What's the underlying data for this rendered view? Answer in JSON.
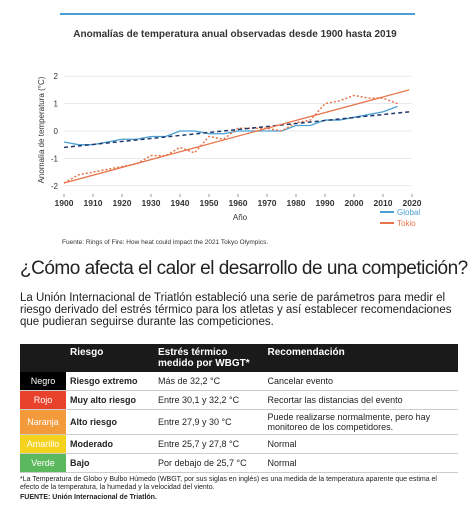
{
  "chart_data": {
    "type": "line",
    "title": "Anomalías de temperatura anual observadas desde 1900 hasta 2019",
    "y_label": "Anomalía de temperatura (°C)",
    "x_label": "Año",
    "source": "Fuente: Rings of Fire: How heat could impact the 2021 Tokyo Olympics.",
    "x": [
      1900,
      1905,
      1910,
      1915,
      1920,
      1925,
      1930,
      1935,
      1940,
      1945,
      1950,
      1955,
      1960,
      1965,
      1970,
      1975,
      1980,
      1985,
      1990,
      1995,
      2000,
      2005,
      2010,
      2015
    ],
    "series": [
      {
        "name": "Global",
        "color": "#4a9fd4",
        "style": "solid",
        "values": [
          -0.4,
          -0.5,
          -0.5,
          -0.4,
          -0.3,
          -0.3,
          -0.2,
          -0.2,
          0.0,
          0.0,
          -0.1,
          -0.1,
          0.0,
          0.0,
          0.0,
          0.0,
          0.2,
          0.2,
          0.4,
          0.4,
          0.5,
          0.6,
          0.7,
          0.9
        ]
      },
      {
        "name": "Tokio",
        "color": "#e8744a",
        "style": "dotted",
        "values": [
          -1.9,
          -1.6,
          -1.5,
          -1.4,
          -1.3,
          -1.2,
          -0.9,
          -0.9,
          -0.6,
          -0.8,
          -0.2,
          -0.3,
          0.1,
          0.1,
          0.1,
          0.0,
          0.3,
          0.4,
          1.0,
          1.1,
          1.3,
          1.2,
          1.2,
          1.0
        ]
      },
      {
        "color": "#1f3a6a",
        "style": "dashed",
        "x": [
          1900,
          2019
        ],
        "values": [
          -0.6,
          0.7
        ]
      },
      {
        "color": "#e8744a",
        "style": "solid",
        "x": [
          1900,
          2019
        ],
        "values": [
          -1.9,
          1.5
        ]
      }
    ],
    "xlim": [
      1900,
      2020
    ],
    "xticks": [
      1900,
      1910,
      1920,
      1930,
      1940,
      1950,
      1960,
      1970,
      1980,
      1990,
      2000,
      2010,
      2020
    ],
    "ylim": [
      -2.3,
      2.3
    ],
    "yticks": [
      -2,
      -1,
      0,
      1,
      2
    ],
    "grid": true
  },
  "heading": "¿Cómo afecta el calor el desarrollo de una competición?",
  "intro": "La Unión Internacional de Triatlón estableció una serie de parámetros para medir el riesgo derivado del estrés térmico para los atletas y así establecer recomendaciones que pudieran seguirse durante las competiciones.",
  "table": {
    "header": [
      "Riesgo",
      "Estrés térmico medido por WBGT*",
      "Recomendación"
    ],
    "colors": [
      "#000000",
      "#e8412c",
      "#f39a3a",
      "#f5d21e",
      "#5cb85c"
    ],
    "rows": [
      [
        "Negro",
        "Riesgo extremo",
        "Más de 32,2 °C",
        "Cancelar evento"
      ],
      [
        "Rojo",
        "Muy alto riesgo",
        "Entre 30,1 y 32,2 °C",
        "Recortar las distancias del evento"
      ],
      [
        "Naranja",
        "Alto riesgo",
        "Entre 27,9 y 30 °C",
        "Puede realizarse normalmente, pero hay monitoreo de los competidores."
      ],
      [
        "Amarillo",
        "Moderado",
        "Entre 25,7 y 27,8 °C",
        "Normal"
      ],
      [
        "Verde",
        "Bajo",
        "Por debajo de 25,7 °C",
        "Normal"
      ]
    ]
  },
  "footnote": "*La Temperatura de Globo y Bulbo Húmedo (WBGT, por sus siglas en inglés) es una medida de la temperatura aparente que estima el efecto de la temperatura, la humedad y la velocidad del viento.",
  "fuente": "FUENTE: Unión Internacional de Triatlón."
}
